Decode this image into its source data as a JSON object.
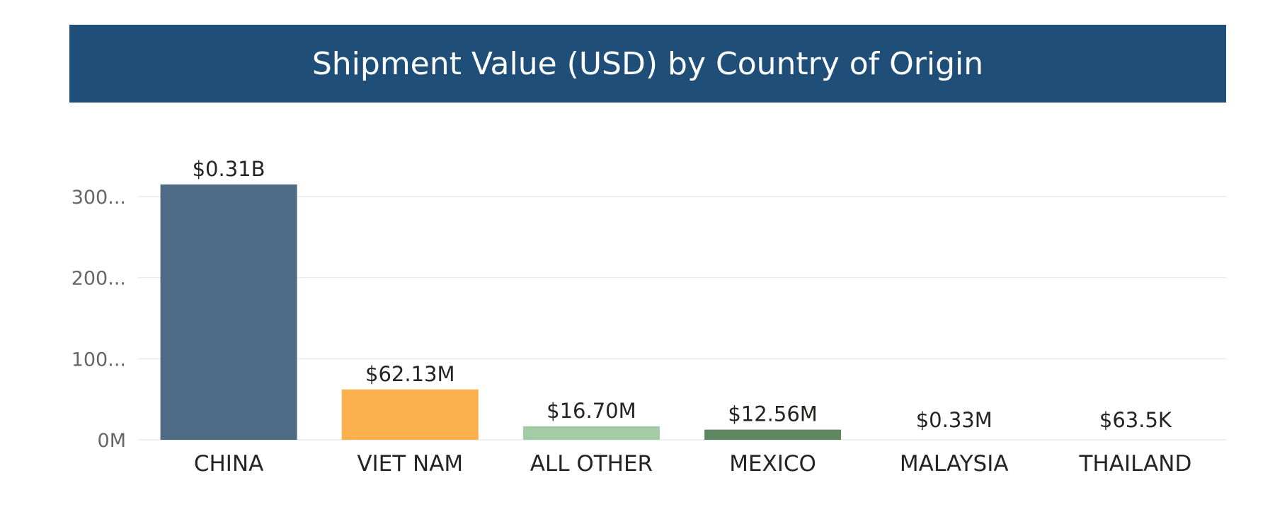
{
  "chart_data": {
    "type": "bar",
    "title": "Shipment Value (USD) by Country of Origin",
    "xlabel": "",
    "ylabel": "",
    "categories": [
      "CHINA",
      "VIET NAM",
      "ALL OTHER",
      "MEXICO",
      "MALAYSIA",
      "THAILAND"
    ],
    "values": [
      315.0,
      62.13,
      16.7,
      12.56,
      0.33,
      0.0635
    ],
    "value_unit": "USD millions",
    "data_labels": [
      "$0.31B",
      "$62.13M",
      "$16.70M",
      "$12.56M",
      "$0.33M",
      "$63.5K"
    ],
    "ylim": [
      0,
      300
    ],
    "yticks": [
      {
        "value": 0,
        "label": "0M"
      },
      {
        "value": 100,
        "label": "100..."
      },
      {
        "value": 200,
        "label": "200..."
      },
      {
        "value": 300,
        "label": "300..."
      }
    ],
    "grid": true,
    "legend": "none",
    "colors": {
      "title_band": "#1F4E79",
      "bars": [
        "#4F6A85",
        "#F9B04D",
        "#A3CBA5",
        "#5E8762",
        "#5E8762",
        "#5E8762"
      ],
      "grid": "#EBEBEB"
    }
  }
}
